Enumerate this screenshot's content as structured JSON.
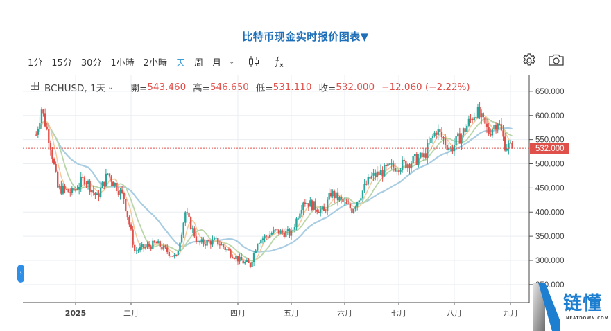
{
  "page": {
    "title": "比特币现金实时报价图表▼"
  },
  "toolbar": {
    "timeframes": [
      {
        "label": "1分",
        "active": false
      },
      {
        "label": "15分",
        "active": false
      },
      {
        "label": "30分",
        "active": false
      },
      {
        "label": "1小時",
        "active": false
      },
      {
        "label": "2小時",
        "active": false
      },
      {
        "label": "天",
        "active": true
      },
      {
        "label": "周",
        "active": false
      },
      {
        "label": "月",
        "active": false
      }
    ],
    "more_icon": "chevron-down-icon",
    "chart_type_icon": "candlestick-icon",
    "indicators_icon": "fx-icon",
    "settings_icon": "gear-icon",
    "screenshot_icon": "camera-icon"
  },
  "legend": {
    "expand_icon": "plus-square-icon",
    "symbol": "BCHUSD, 1天",
    "open_label": "開=",
    "open": "543.460",
    "high_label": "高=",
    "high": "546.650",
    "low_label": "低=",
    "low": "531.110",
    "close_label": "收=",
    "close": "532.000",
    "change": "−12.060 (−2.22%)"
  },
  "price_tag": "532.000",
  "logo": {
    "cn": "链懂",
    "en": "NEATDOWN.COM"
  },
  "colors": {
    "up": "#26a69a",
    "down": "#e0504a",
    "title": "#1e6fb8",
    "active_tf": "#3a9fd8",
    "ma_fast": "#f5c99a",
    "ma_mid": "#b9d6a8",
    "ma_slow": "#a8cde2",
    "price_tag_bg": "#e0504a"
  },
  "chart_data": {
    "type": "candlestick",
    "title": "BCHUSD, 1天",
    "xlabel": "",
    "ylabel": "",
    "x_ticks": [
      "2025",
      "二月",
      "四月",
      "五月",
      "六月",
      "七月",
      "八月",
      "九月"
    ],
    "y_ticks": [
      650,
      600,
      550,
      500,
      450,
      400,
      350,
      300,
      250
    ],
    "y_tick_labels": [
      "650.000",
      "600.000",
      "550.000",
      "500.000",
      "450.000",
      "400.000",
      "350.000",
      "300.000",
      "250.000"
    ],
    "ylim": [
      232,
      672
    ],
    "last_price": 532.0,
    "last_ohlc": {
      "open": 543.46,
      "high": 546.65,
      "low": 531.11,
      "close": 532.0,
      "change": -12.06,
      "change_pct": -2.22
    },
    "grid": true,
    "moving_averages": [
      "fast (orange)",
      "mid (green)",
      "slow (blue)"
    ],
    "approx_close_path": [
      {
        "date": "2024-12-10",
        "close": 560
      },
      {
        "date": "2024-12-13",
        "close": 615
      },
      {
        "date": "2024-12-18",
        "close": 540
      },
      {
        "date": "2024-12-22",
        "close": 450
      },
      {
        "date": "2024-12-30",
        "close": 440
      },
      {
        "date": "2025-01-06",
        "close": 470
      },
      {
        "date": "2025-01-13",
        "close": 430
      },
      {
        "date": "2025-01-19",
        "close": 480
      },
      {
        "date": "2025-01-28",
        "close": 430
      },
      {
        "date": "2025-02-03",
        "close": 320
      },
      {
        "date": "2025-02-15",
        "close": 335
      },
      {
        "date": "2025-02-26",
        "close": 305
      },
      {
        "date": "2025-03-03",
        "close": 400
      },
      {
        "date": "2025-03-10",
        "close": 335
      },
      {
        "date": "2025-03-20",
        "close": 340
      },
      {
        "date": "2025-04-02",
        "close": 300
      },
      {
        "date": "2025-04-08",
        "close": 290
      },
      {
        "date": "2025-04-12",
        "close": 340
      },
      {
        "date": "2025-04-22",
        "close": 360
      },
      {
        "date": "2025-05-01",
        "close": 355
      },
      {
        "date": "2025-05-08",
        "close": 425
      },
      {
        "date": "2025-05-20",
        "close": 400
      },
      {
        "date": "2025-05-24",
        "close": 440
      },
      {
        "date": "2025-06-05",
        "close": 405
      },
      {
        "date": "2025-06-15",
        "close": 470
      },
      {
        "date": "2025-06-25",
        "close": 490
      },
      {
        "date": "2025-07-05",
        "close": 500
      },
      {
        "date": "2025-07-15",
        "close": 515
      },
      {
        "date": "2025-07-22",
        "close": 570
      },
      {
        "date": "2025-07-30",
        "close": 530
      },
      {
        "date": "2025-08-05",
        "close": 560
      },
      {
        "date": "2025-08-13",
        "close": 610
      },
      {
        "date": "2025-08-20",
        "close": 565
      },
      {
        "date": "2025-08-25",
        "close": 590
      },
      {
        "date": "2025-08-29",
        "close": 540
      },
      {
        "date": "2025-09-02",
        "close": 532
      }
    ]
  }
}
